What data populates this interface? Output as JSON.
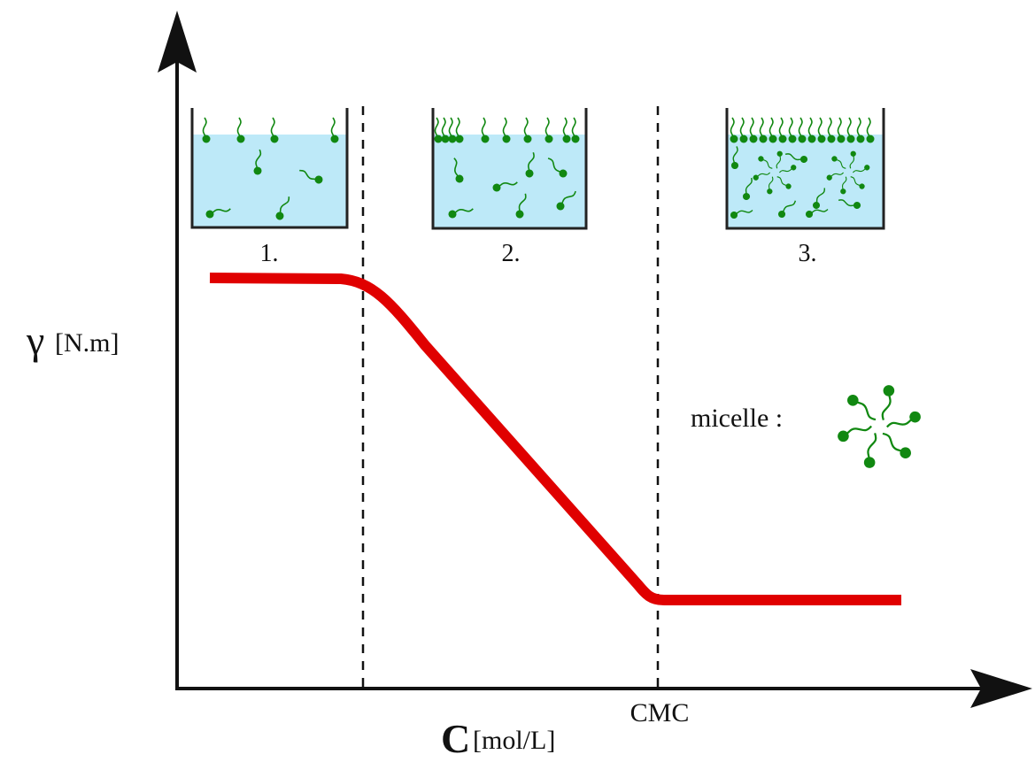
{
  "axes": {
    "y_symbol": "γ",
    "y_unit": "[N.m]",
    "x_symbol": "C",
    "x_unit": "[mol/L]"
  },
  "markers": {
    "cmc": "CMC"
  },
  "beakers": [
    {
      "label": "1."
    },
    {
      "label": "2."
    },
    {
      "label": "3."
    }
  ],
  "legend": {
    "label": "micelle :"
  }
}
